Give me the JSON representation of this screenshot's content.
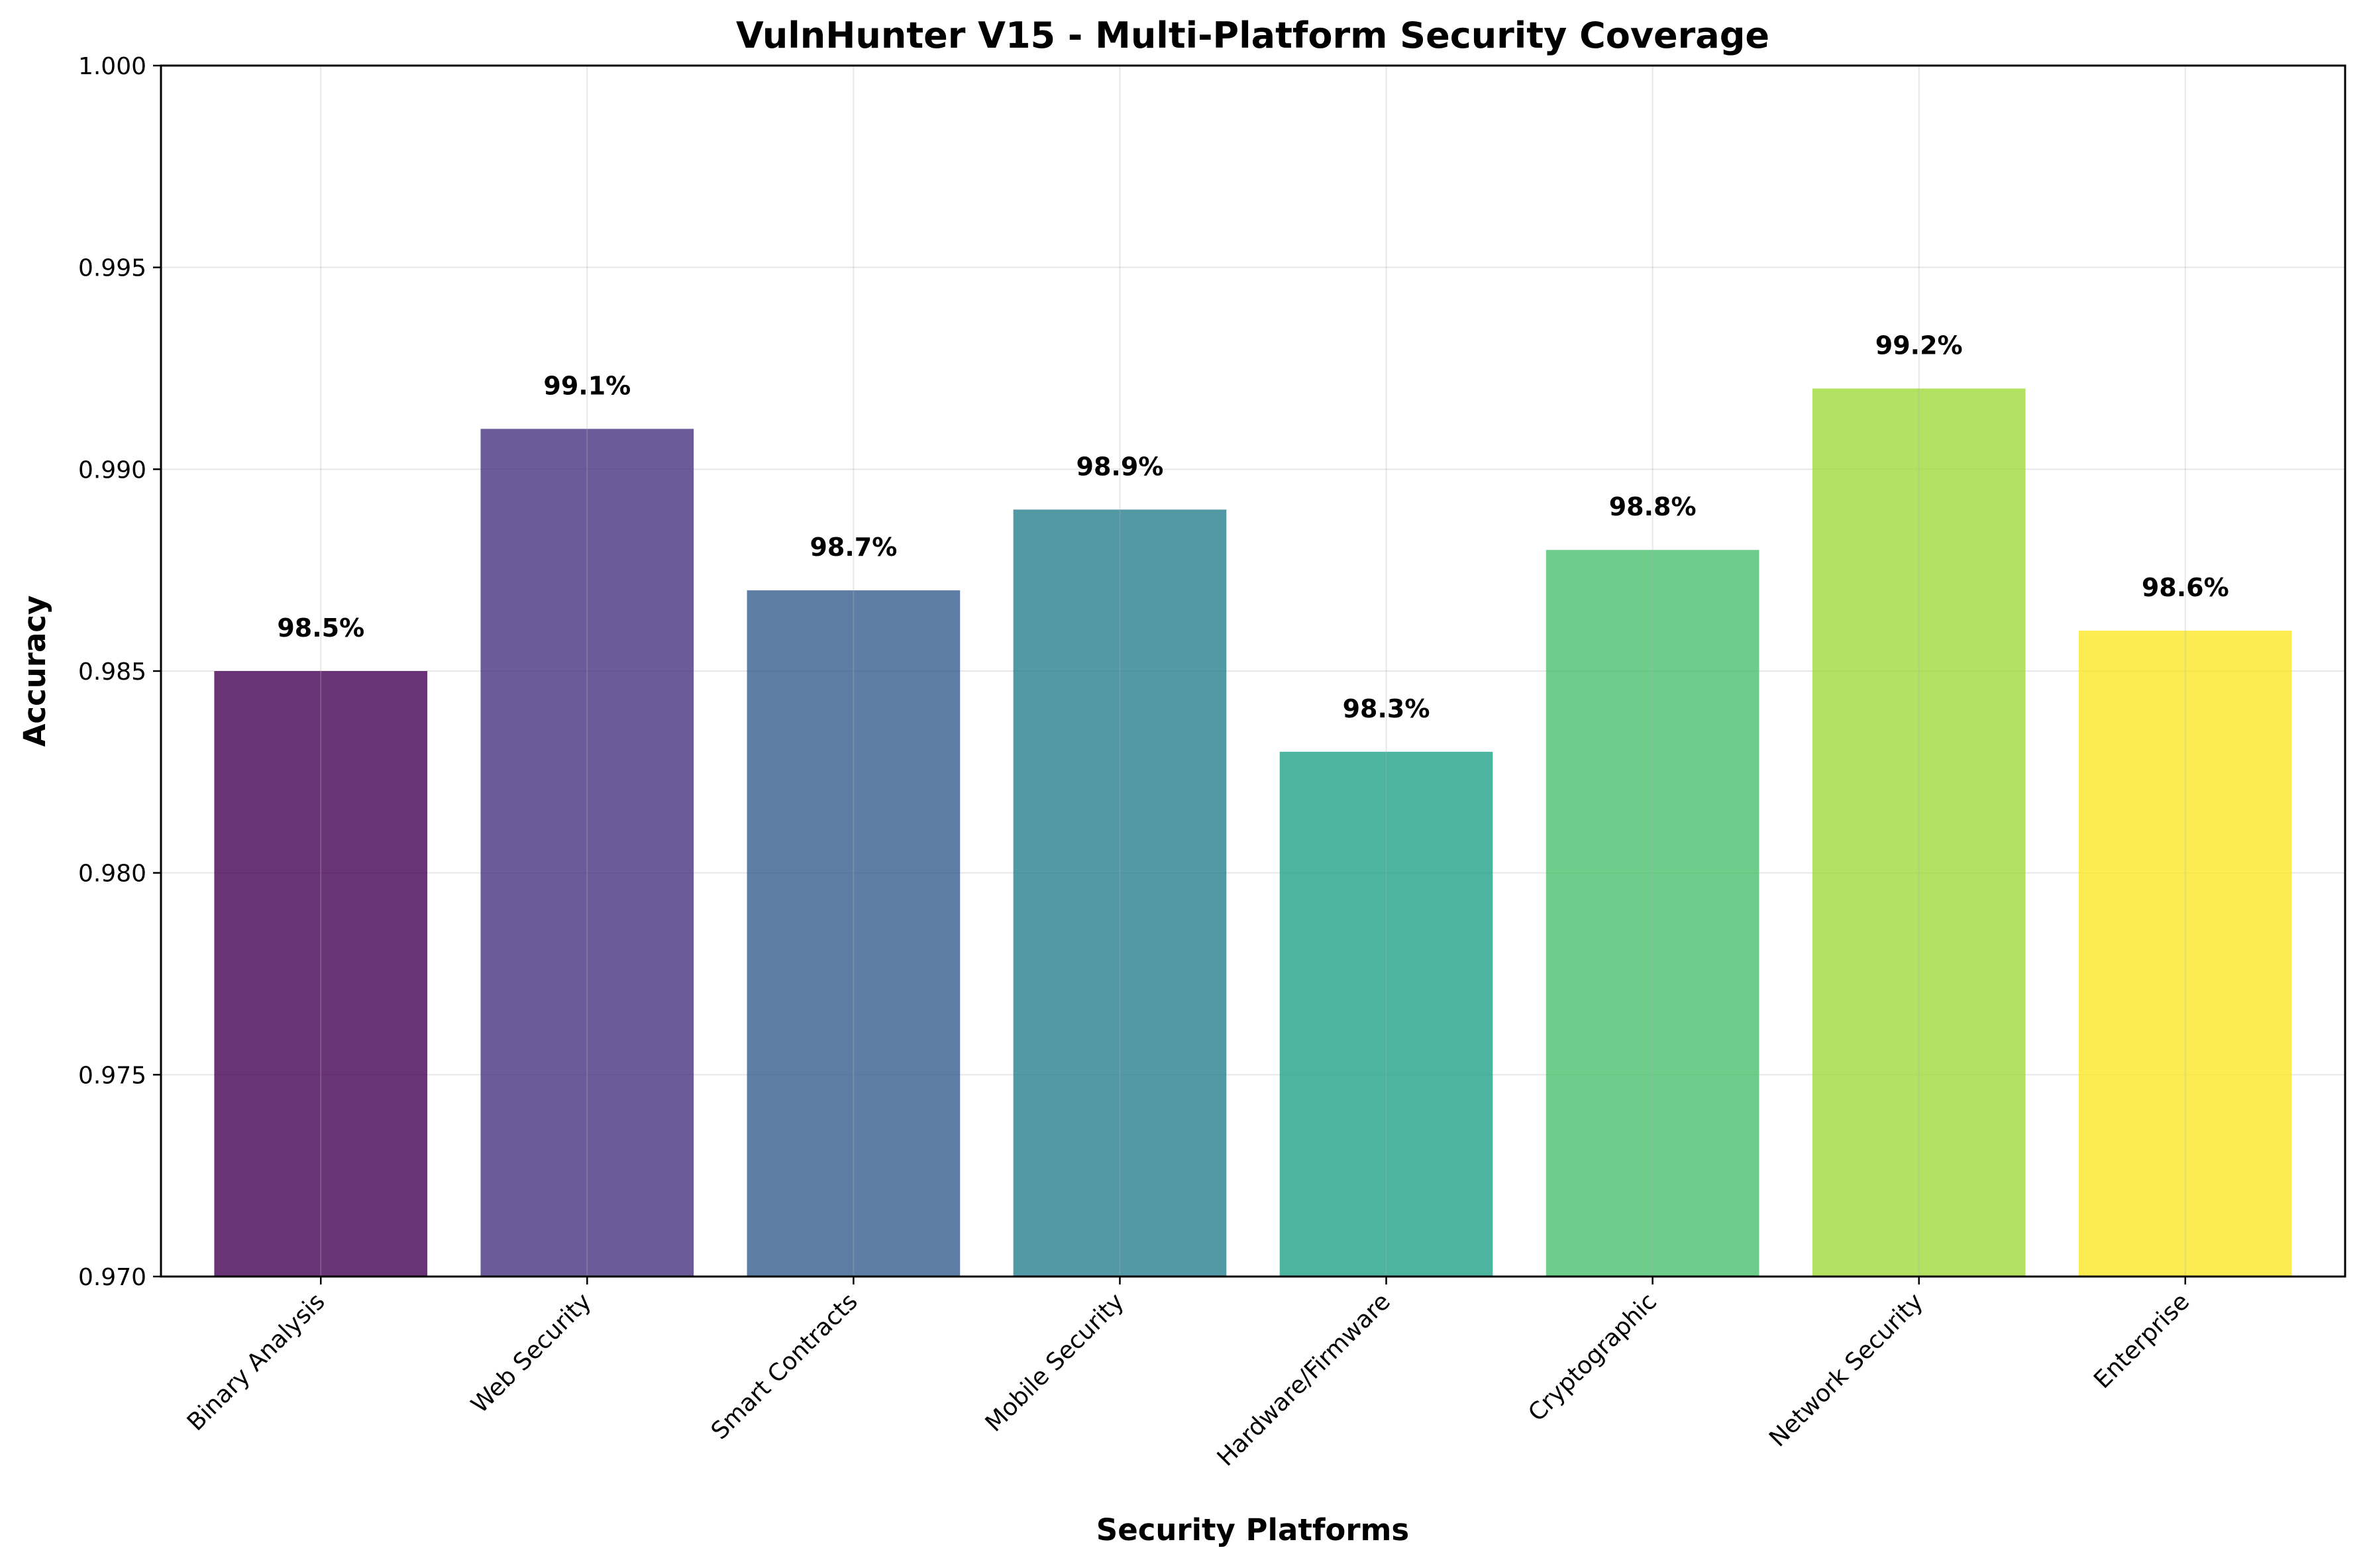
{
  "chart_data": {
    "type": "bar",
    "title": "VulnHunter V15 - Multi-Platform Security Coverage",
    "xlabel": "Security Platforms",
    "ylabel": "Accuracy",
    "categories": [
      "Binary Analysis",
      "Web Security",
      "Smart Contracts",
      "Mobile Security",
      "Hardware/Firmware",
      "Cryptographic",
      "Network Security",
      "Enterprise"
    ],
    "values": [
      0.985,
      0.991,
      0.987,
      0.989,
      0.983,
      0.988,
      0.992,
      0.986
    ],
    "data_labels": [
      "98.5%",
      "99.1%",
      "98.7%",
      "98.9%",
      "98.3%",
      "98.8%",
      "99.2%",
      "98.6%"
    ],
    "ylim": [
      0.97,
      1.0
    ],
    "yticks": [
      "0.970",
      "0.975",
      "0.980",
      "0.985",
      "0.990",
      "0.995",
      "1.000"
    ],
    "grid": true,
    "colors": [
      "#440154",
      "#46327e",
      "#365c8d",
      "#277f8e",
      "#1fa187",
      "#4ac16d",
      "#a0da39",
      "#fde725"
    ],
    "bar_opacity": 0.8
  }
}
